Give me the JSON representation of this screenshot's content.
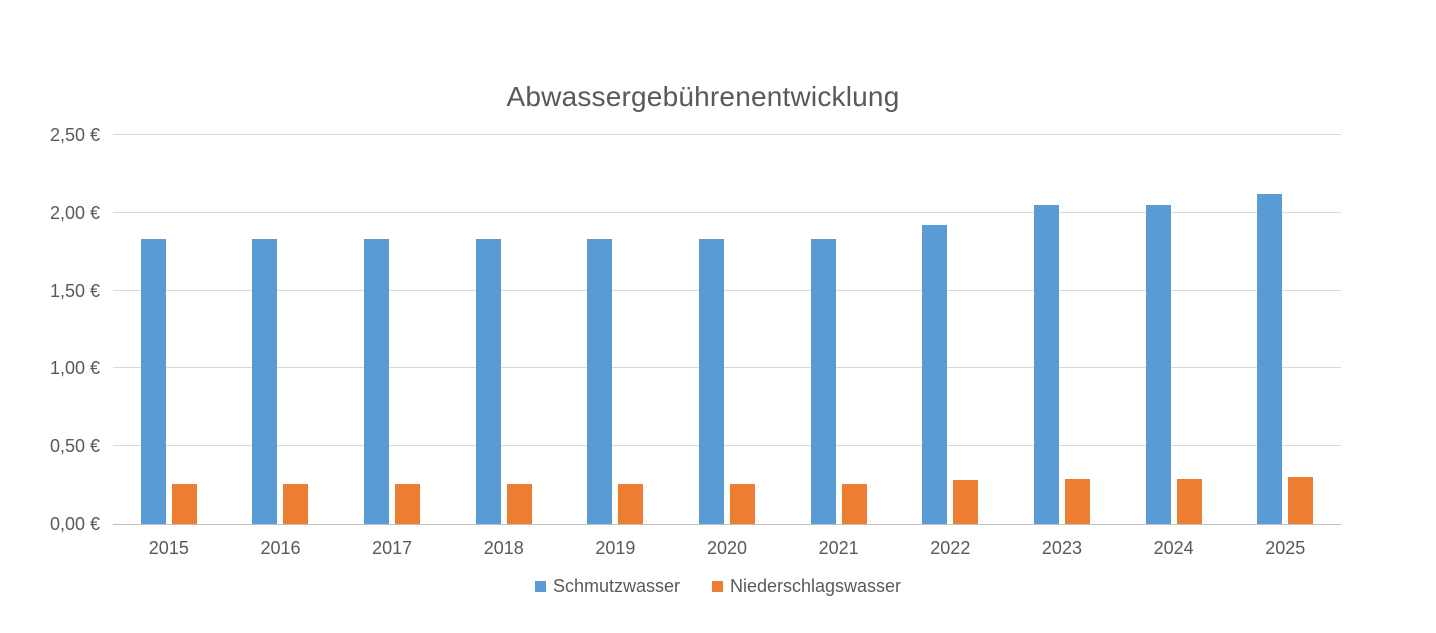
{
  "chart_data": {
    "type": "bar",
    "title": "Abwassergebührenentwicklung",
    "categories": [
      "2015",
      "2016",
      "2017",
      "2018",
      "2019",
      "2020",
      "2021",
      "2022",
      "2023",
      "2024",
      "2025"
    ],
    "series": [
      {
        "name": "Schmutzwasser",
        "color": "#5B9BD5",
        "values": [
          1.83,
          1.83,
          1.83,
          1.83,
          1.83,
          1.83,
          1.83,
          1.92,
          2.05,
          2.05,
          2.12
        ]
      },
      {
        "name": "Niederschlagswasser",
        "color": "#ED7D31",
        "values": [
          0.26,
          0.26,
          0.26,
          0.26,
          0.26,
          0.26,
          0.26,
          0.28,
          0.29,
          0.29,
          0.3
        ]
      }
    ],
    "xlabel": "",
    "ylabel": "",
    "ylim": [
      0,
      2.5
    ],
    "ytick_step": 0.5,
    "ytick_labels": [
      "0,00 €",
      "0,50 €",
      "1,00 €",
      "1,50 €",
      "2,00 €",
      "2,50 €"
    ],
    "grid": true,
    "legend_position": "bottom",
    "colors": {
      "text": "#595959",
      "gridline": "#D9D9D9",
      "axis_line": "#BFBFBF",
      "background": "#FFFFFF"
    }
  }
}
